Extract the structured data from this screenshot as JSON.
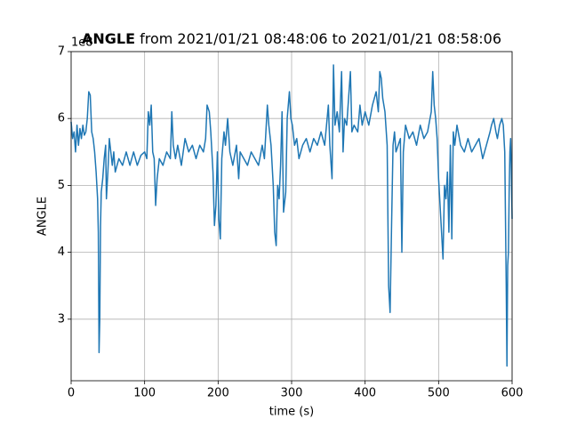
{
  "chart_data": {
    "type": "line",
    "title_bold": "ANGLE",
    "title": "from 2021/01/21 08:48:06 to 2021/01/21 08:58:06",
    "offset_label": "1e8",
    "xlabel": "time (s)",
    "ylabel": "ANGLE",
    "xlim": [
      0,
      600
    ],
    "ylim": [
      2.08,
      7
    ],
    "xticks": [
      0,
      100,
      200,
      300,
      400,
      500,
      600
    ],
    "yticks": [
      3,
      4,
      5,
      6,
      7
    ],
    "grid": true,
    "series": [
      {
        "color": "#1f77b4",
        "x": [
          0,
          2,
          4,
          6,
          8,
          10,
          12,
          14,
          16,
          18,
          20,
          22,
          24,
          26,
          28,
          30,
          32,
          34,
          36,
          37,
          38,
          39,
          40,
          41,
          43,
          45,
          47,
          48,
          50,
          52,
          54,
          56,
          58,
          60,
          65,
          70,
          75,
          80,
          85,
          90,
          95,
          100,
          103,
          105,
          107,
          109,
          111,
          113,
          115,
          117,
          120,
          125,
          130,
          135,
          137,
          139,
          142,
          145,
          150,
          155,
          160,
          165,
          170,
          175,
          180,
          183,
          185,
          188,
          190,
          193,
          195,
          197,
          199,
          201,
          203,
          205,
          208,
          210,
          213,
          216,
          220,
          225,
          228,
          230,
          235,
          240,
          245,
          250,
          255,
          260,
          263,
          265,
          267,
          269,
          272,
          275,
          277,
          279,
          281,
          283,
          285,
          287,
          289,
          292,
          294,
          297,
          299,
          301,
          304,
          307,
          310,
          315,
          320,
          325,
          330,
          335,
          340,
          345,
          350,
          352,
          355,
          357,
          359,
          362,
          365,
          368,
          370,
          372,
          375,
          380,
          382,
          385,
          390,
          393,
          396,
          400,
          405,
          410,
          415,
          418,
          420,
          422,
          424,
          427,
          430,
          432,
          434,
          436,
          438,
          440,
          442,
          445,
          448,
          450,
          452,
          455,
          460,
          465,
          470,
          475,
          480,
          485,
          490,
          492,
          494,
          496,
          498,
          500,
          502,
          504,
          506,
          508,
          510,
          512,
          514,
          516,
          518,
          520,
          522,
          525,
          530,
          535,
          540,
          545,
          550,
          555,
          560,
          565,
          570,
          572,
          575,
          578,
          580,
          583,
          586,
          588,
          590,
          592,
          593,
          594,
          595,
          596,
          597,
          598,
          599,
          600
        ],
        "values": [
          5.95,
          5.7,
          5.8,
          5.5,
          5.9,
          5.6,
          5.85,
          5.7,
          5.9,
          5.75,
          5.8,
          6.0,
          6.4,
          6.35,
          5.8,
          5.7,
          5.5,
          5.2,
          4.8,
          4.3,
          2.5,
          3.0,
          4.4,
          4.9,
          5.1,
          5.4,
          5.6,
          4.8,
          5.2,
          5.7,
          5.5,
          5.3,
          5.5,
          5.2,
          5.4,
          5.3,
          5.5,
          5.3,
          5.5,
          5.3,
          5.45,
          5.5,
          5.4,
          6.1,
          5.9,
          6.2,
          5.5,
          5.4,
          4.7,
          5.1,
          5.4,
          5.3,
          5.5,
          5.4,
          6.1,
          5.6,
          5.4,
          5.6,
          5.3,
          5.7,
          5.5,
          5.6,
          5.4,
          5.6,
          5.5,
          5.7,
          6.2,
          6.1,
          5.8,
          5.2,
          4.4,
          4.7,
          5.5,
          4.5,
          4.2,
          5.4,
          5.8,
          5.6,
          6.0,
          5.5,
          5.3,
          5.6,
          5.1,
          5.5,
          5.4,
          5.3,
          5.5,
          5.4,
          5.3,
          5.6,
          5.4,
          5.8,
          6.2,
          5.9,
          5.6,
          5.0,
          4.3,
          4.1,
          5.0,
          4.8,
          5.3,
          6.1,
          4.6,
          4.9,
          6.0,
          6.4,
          6.0,
          5.9,
          5.6,
          5.7,
          5.4,
          5.6,
          5.7,
          5.5,
          5.7,
          5.6,
          5.8,
          5.6,
          6.2,
          5.6,
          5.1,
          6.8,
          5.9,
          6.1,
          5.8,
          6.7,
          5.5,
          6.0,
          5.9,
          6.7,
          5.8,
          5.9,
          5.8,
          6.2,
          5.9,
          6.1,
          5.9,
          6.2,
          6.4,
          6.1,
          6.7,
          6.6,
          6.3,
          6.1,
          5.6,
          3.5,
          3.1,
          4.4,
          5.6,
          5.8,
          5.5,
          5.6,
          5.7,
          4.0,
          5.5,
          5.9,
          5.7,
          5.8,
          5.6,
          5.9,
          5.7,
          5.8,
          6.1,
          6.7,
          6.2,
          6.0,
          5.7,
          5.1,
          4.7,
          4.3,
          3.9,
          5.0,
          4.8,
          5.2,
          4.3,
          5.6,
          4.2,
          5.8,
          5.6,
          5.9,
          5.6,
          5.5,
          5.7,
          5.5,
          5.6,
          5.7,
          5.4,
          5.6,
          5.8,
          5.9,
          6.0,
          5.8,
          5.7,
          5.9,
          6.0,
          5.9,
          5.5,
          3.5,
          2.3,
          3.8,
          4.0,
          4.9,
          5.5,
          5.7,
          5.2,
          4.5
        ]
      }
    ]
  }
}
